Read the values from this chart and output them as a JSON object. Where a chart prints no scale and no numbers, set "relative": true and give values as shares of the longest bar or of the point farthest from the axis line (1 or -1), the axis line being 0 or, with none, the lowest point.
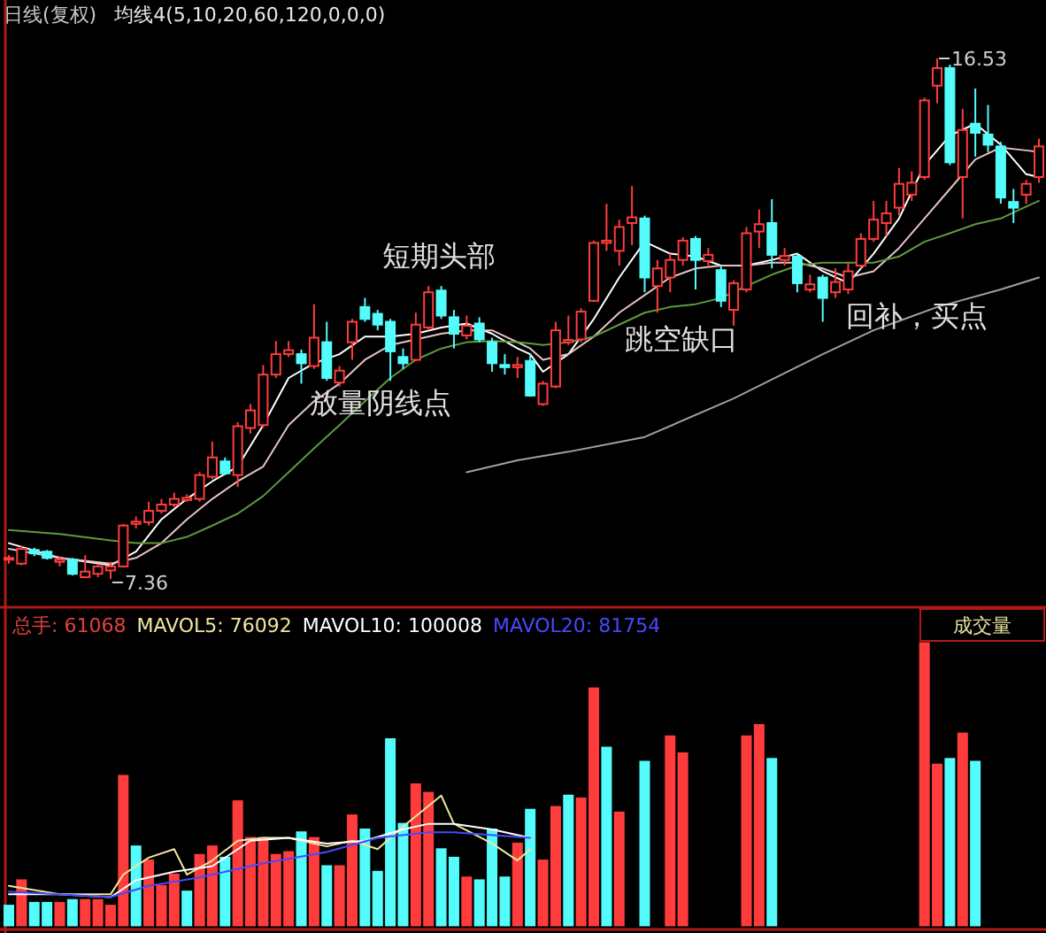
{
  "chart_data": [
    {
      "type": "candlestick",
      "title": "日线(复权)",
      "subtitle": "均线4(5,10,20,60,120,0,0,0)",
      "tick_labels": false,
      "categories": [
        null,
        null,
        null,
        null,
        null,
        null,
        null,
        null,
        null,
        null,
        null,
        null,
        null,
        null,
        null,
        null,
        null,
        null,
        null,
        null,
        null,
        null,
        null,
        null,
        null,
        null,
        null,
        null,
        null,
        null,
        null,
        null,
        null,
        null,
        null,
        null,
        null,
        null,
        null,
        null,
        null,
        null,
        null,
        null,
        null,
        null,
        null,
        null,
        null,
        null,
        null,
        null,
        null,
        null,
        null,
        null,
        null,
        null,
        null,
        null,
        null,
        null,
        null,
        null,
        null,
        null,
        null,
        null,
        null,
        null,
        null,
        null,
        null,
        null,
        null,
        null,
        null,
        null,
        null,
        null,
        null,
        null
      ],
      "ohlc": [
        [
          7.73,
          7.78,
          7.63,
          7.73
        ],
        [
          7.63,
          7.94,
          7.6,
          7.89
        ],
        [
          7.87,
          7.91,
          7.76,
          7.81
        ],
        [
          7.84,
          7.87,
          7.7,
          7.73
        ],
        [
          7.66,
          7.76,
          7.58,
          7.7
        ],
        [
          7.7,
          7.73,
          7.42,
          7.45
        ],
        [
          7.39,
          7.78,
          7.38,
          7.49
        ],
        [
          7.45,
          7.63,
          7.39,
          7.58
        ],
        [
          7.51,
          7.66,
          7.36,
          7.58
        ],
        [
          7.58,
          8.33,
          7.56,
          8.3
        ],
        [
          8.33,
          8.46,
          8.25,
          8.37
        ],
        [
          8.36,
          8.72,
          8.3,
          8.56
        ],
        [
          8.56,
          8.77,
          8.51,
          8.67
        ],
        [
          8.67,
          8.88,
          8.62,
          8.77
        ],
        [
          8.75,
          8.85,
          8.72,
          8.79
        ],
        [
          8.77,
          9.24,
          8.72,
          9.19
        ],
        [
          9.16,
          9.78,
          9.12,
          9.5
        ],
        [
          9.43,
          9.5,
          9.19,
          9.22
        ],
        [
          9.19,
          10.12,
          8.98,
          10.05
        ],
        [
          10.02,
          10.44,
          9.92,
          10.33
        ],
        [
          10.07,
          11.13,
          10.02,
          10.96
        ],
        [
          10.96,
          11.55,
          10.9,
          11.32
        ],
        [
          11.32,
          11.55,
          11.27,
          11.39
        ],
        [
          11.32,
          11.4,
          10.8,
          11.16
        ],
        [
          11.11,
          12.2,
          11.06,
          11.61
        ],
        [
          11.53,
          11.89,
          10.85,
          10.9
        ],
        [
          10.82,
          11.11,
          10.75,
          11.03
        ],
        [
          11.53,
          11.94,
          11.22,
          11.89
        ],
        [
          12.15,
          12.31,
          11.89,
          11.94
        ],
        [
          12.03,
          12.1,
          11.74,
          11.84
        ],
        [
          11.89,
          11.94,
          10.85,
          11.37
        ],
        [
          11.27,
          11.42,
          11.06,
          11.16
        ],
        [
          11.22,
          12.05,
          11.2,
          11.84
        ],
        [
          11.79,
          12.52,
          11.74,
          12.41
        ],
        [
          12.44,
          12.52,
          11.94,
          12.0
        ],
        [
          11.97,
          12.1,
          11.42,
          11.68
        ],
        [
          11.65,
          12.0,
          11.58,
          11.82
        ],
        [
          11.86,
          11.97,
          11.53,
          11.58
        ],
        [
          11.53,
          11.61,
          11.01,
          11.16
        ],
        [
          11.13,
          11.32,
          10.96,
          11.09
        ],
        [
          11.09,
          11.27,
          10.9,
          11.13
        ],
        [
          11.2,
          11.32,
          10.57,
          10.59
        ],
        [
          10.44,
          10.85,
          10.41,
          10.8
        ],
        [
          10.75,
          11.89,
          10.72,
          11.74
        ],
        [
          11.53,
          12.0,
          11.48,
          11.57
        ],
        [
          11.58,
          12.13,
          11.53,
          12.07
        ],
        [
          12.26,
          13.32,
          12.24,
          13.28
        ],
        [
          13.28,
          13.97,
          13.14,
          13.32
        ],
        [
          13.14,
          13.69,
          12.88,
          13.56
        ],
        [
          13.63,
          14.28,
          13.24,
          13.73
        ],
        [
          13.71,
          13.76,
          12.41,
          12.67
        ],
        [
          12.52,
          12.98,
          12.05,
          12.83
        ],
        [
          12.67,
          13.09,
          12.41,
          12.98
        ],
        [
          12.98,
          13.38,
          12.88,
          13.32
        ],
        [
          13.35,
          13.4,
          12.46,
          12.98
        ],
        [
          12.96,
          13.19,
          12.88,
          13.07
        ],
        [
          12.8,
          12.88,
          12.15,
          12.26
        ],
        [
          12.1,
          12.62,
          11.82,
          12.57
        ],
        [
          12.46,
          13.56,
          12.41,
          13.45
        ],
        [
          13.48,
          13.87,
          13.19,
          13.61
        ],
        [
          13.63,
          14.05,
          12.83,
          13.07
        ],
        [
          12.98,
          13.19,
          12.88,
          13.05
        ],
        [
          13.04,
          13.09,
          12.41,
          12.57
        ],
        [
          12.46,
          12.72,
          12.41,
          12.55
        ],
        [
          12.67,
          12.72,
          11.89,
          12.31
        ],
        [
          12.41,
          12.83,
          12.31,
          12.59
        ],
        [
          12.46,
          12.93,
          12.38,
          12.78
        ],
        [
          12.88,
          13.45,
          12.83,
          13.35
        ],
        [
          13.35,
          14.02,
          13.3,
          13.69
        ],
        [
          13.63,
          14.02,
          13.4,
          13.8
        ],
        [
          13.9,
          14.6,
          13.76,
          14.32
        ],
        [
          14.13,
          14.54,
          14.02,
          14.34
        ],
        [
          14.44,
          15.84,
          14.39,
          15.79
        ],
        [
          16.05,
          16.53,
          15.74,
          16.36
        ],
        [
          16.36,
          16.42,
          14.65,
          14.7
        ],
        [
          14.44,
          15.64,
          13.71,
          15.27
        ],
        [
          15.38,
          16.0,
          14.8,
          15.22
        ],
        [
          15.19,
          15.71,
          14.88,
          15.01
        ],
        [
          14.98,
          15.06,
          13.97,
          14.08
        ],
        [
          14.0,
          14.23,
          13.63,
          13.9
        ],
        [
          14.13,
          14.39,
          13.97,
          14.32
        ],
        [
          14.44,
          15.12,
          14.34,
          14.98
        ]
      ],
      "colors": [
        "#ff3c3c",
        "#ff3c3c",
        "#54fcfc",
        "#54fcfc",
        "#ff3c3c",
        "#54fcfc",
        "#ff3c3c",
        "#ff3c3c",
        "#ff3c3c",
        "#ff3c3c",
        "#ff3c3c",
        "#ff3c3c",
        "#ff3c3c",
        "#ff3c3c",
        "#ff3c3c",
        "#ff3c3c",
        "#ff3c3c",
        "#54fcfc",
        "#ff3c3c",
        "#ff3c3c",
        "#ff3c3c",
        "#ff3c3c",
        "#ff3c3c",
        "#54fcfc",
        "#ff3c3c",
        "#54fcfc",
        "#ff3c3c",
        "#ff3c3c",
        "#54fcfc",
        "#54fcfc",
        "#54fcfc",
        "#54fcfc",
        "#ff3c3c",
        "#ff3c3c",
        "#54fcfc",
        "#54fcfc",
        "#ff3c3c",
        "#54fcfc",
        "#54fcfc",
        "#54fcfc",
        "#ff3c3c",
        "#54fcfc",
        "#ff3c3c",
        "#ff3c3c",
        "#ff3c3c",
        "#ff3c3c",
        "#ff3c3c",
        "#ff3c3c",
        "#ff3c3c",
        "#ff3c3c",
        "#54fcfc",
        "#ff3c3c",
        "#ff3c3c",
        "#ff3c3c",
        "#54fcfc",
        "#ff3c3c",
        "#54fcfc",
        "#ff3c3c",
        "#ff3c3c",
        "#ff3c3c",
        "#54fcfc",
        "#ff3c3c",
        "#54fcfc",
        "#ff3c3c",
        "#54fcfc",
        "#ff3c3c",
        "#ff3c3c",
        "#ff3c3c",
        "#ff3c3c",
        "#ff3c3c",
        "#ff3c3c",
        "#ff3c3c",
        "#ff3c3c",
        "#ff3c3c",
        "#54fcfc",
        "#ff3c3c",
        "#54fcfc",
        "#54fcfc",
        "#54fcfc",
        "#54fcfc",
        "#ff3c3c",
        "#ff3c3c"
      ],
      "series": [
        {
          "type": "line",
          "color": "#ffffff",
          "values": [
            7.99,
            null,
            null,
            null,
            7.73,
            null,
            null,
            null,
            7.6,
            null,
            7.84,
            null,
            8.41,
            null,
            8.77,
            null,
            9.08,
            null,
            9.34,
            null,
            10.07,
            null,
            10.9,
            null,
            11.16,
            null,
            11.32,
            null,
            11.63,
            null,
            11.63,
            null,
            11.68,
            null,
            11.79,
            null,
            11.86,
            null,
            11.68,
            null,
            11.42,
            11.32,
            11.01,
            null,
            11.32,
            null,
            11.94,
            null,
            12.67,
            null,
            13.3,
            null,
            13.09,
            null,
            13.04,
            null,
            12.88,
            null,
            12.88,
            null,
            12.98,
            null,
            13.09,
            null,
            12.78,
            null,
            12.57,
            null,
            13.09,
            null,
            13.71,
            null,
            14.65,
            null,
            15.17,
            null,
            15.38,
            null,
            15.01,
            null,
            14.49,
            14.44
          ]
        },
        {
          "type": "line",
          "color": "#e6c3c3",
          "values": [
            7.89,
            null,
            null,
            null,
            7.73,
            null,
            null,
            null,
            7.63,
            null,
            7.73,
            null,
            7.99,
            null,
            8.41,
            null,
            8.77,
            null,
            9.08,
            null,
            9.34,
            null,
            10.07,
            null,
            10.49,
            null,
            10.8,
            null,
            11.22,
            null,
            11.48,
            null,
            11.58,
            null,
            11.68,
            null,
            11.74,
            null,
            11.74,
            null,
            11.53,
            11.42,
            11.22,
            null,
            11.32,
            null,
            11.63,
            null,
            12.05,
            null,
            12.36,
            null,
            12.67,
            null,
            12.83,
            null,
            12.88,
            null,
            12.88,
            null,
            12.93,
            null,
            12.93,
            null,
            12.83,
            null,
            12.67,
            null,
            12.78,
            null,
            13.19,
            null,
            13.71,
            null,
            14.23,
            null,
            14.75,
            null,
            14.96,
            null,
            14.91,
            14.88
          ]
        },
        {
          "type": "line",
          "color": "#5e9a3c",
          "values": [
            8.22,
            null,
            null,
            null,
            8.15,
            null,
            null,
            null,
            8.04,
            null,
            7.99,
            null,
            7.99,
            null,
            8.1,
            null,
            8.3,
            null,
            8.51,
            null,
            8.82,
            null,
            9.24,
            null,
            9.66,
            null,
            10.07,
            null,
            10.49,
            null,
            10.9,
            null,
            11.22,
            null,
            11.42,
            null,
            11.53,
            null,
            11.55,
            null,
            11.53,
            11.51,
            11.48,
            null,
            11.53,
            null,
            11.63,
            null,
            11.84,
            null,
            12.05,
            null,
            12.15,
            null,
            12.2,
            null,
            12.31,
            null,
            12.52,
            null,
            12.72,
            null,
            12.88,
            null,
            12.93,
            null,
            12.93,
            null,
            12.93,
            null,
            13.04,
            null,
            13.3,
            null,
            13.45,
            null,
            13.61,
            null,
            13.71,
            null,
            13.92,
            14.02
          ]
        },
        {
          "type": "line",
          "color": "#a0a0a0",
          "values": [
            null,
            null,
            null,
            null,
            null,
            null,
            null,
            null,
            null,
            null,
            null,
            null,
            null,
            null,
            null,
            null,
            null,
            null,
            null,
            null,
            null,
            null,
            null,
            null,
            null,
            null,
            null,
            null,
            null,
            null,
            null,
            null,
            null,
            null,
            null,
            null,
            9.24,
            null,
            null,
            null,
            9.45,
            null,
            null,
            null,
            9.6,
            null,
            null,
            null,
            null,
            null,
            9.86,
            null,
            null,
            null,
            null,
            null,
            null,
            10.54,
            null,
            null,
            null,
            null,
            null,
            null,
            11.32,
            null,
            null,
            null,
            11.74,
            null,
            null,
            null,
            null,
            12.15,
            null,
            null,
            null,
            null,
            12.46,
            null,
            null,
            12.67
          ]
        }
      ],
      "annotations": [
        "短期头部",
        "放量阴线点",
        "跳空缺口",
        "回补，买点",
        "16.53",
        "7.36"
      ]
    },
    {
      "type": "bar",
      "relative": true,
      "title": "成交量",
      "tick_labels": false,
      "categories": [
        null,
        null,
        null,
        null,
        null,
        null,
        null,
        null,
        null,
        null,
        null,
        null,
        null,
        null,
        null,
        null,
        null,
        null,
        null,
        null,
        null,
        null,
        null,
        null,
        null,
        null,
        null,
        null,
        null,
        null,
        null,
        null,
        null,
        null,
        null,
        null,
        null,
        null,
        null,
        null,
        null,
        null,
        null,
        null,
        null,
        null,
        null,
        null,
        null,
        null,
        null,
        null,
        null,
        null,
        null,
        null,
        null,
        null,
        null,
        null,
        null,
        null,
        null,
        null,
        null,
        null,
        null,
        null,
        null,
        null,
        null,
        null,
        null,
        null,
        null,
        null,
        null,
        null,
        null,
        null,
        null,
        null
      ],
      "values": [
        0.07,
        0.16,
        0.08,
        0.08,
        0.08,
        0.09,
        0.09,
        0.09,
        0.07,
        0.53,
        0.28,
        0.23,
        0.14,
        0.18,
        0.12,
        0.25,
        0.28,
        0.24,
        0.44,
        0.31,
        0.31,
        0.25,
        0.26,
        0.33,
        0.31,
        0.21,
        0.21,
        0.39,
        0.34,
        0.19,
        0.66,
        0.36,
        0.5,
        0.47,
        0.27,
        0.24,
        0.17,
        0.16,
        0.34,
        0.17,
        0.29,
        0.41,
        0.23,
        0.42,
        0.46,
        0.45,
        0.84,
        0.63,
        0.4,
        null,
        0.58,
        null,
        0.67,
        0.61,
        null,
        null,
        null,
        null,
        0.67,
        0.71,
        0.59,
        null,
        null,
        null,
        null,
        null,
        null,
        null,
        null,
        null,
        null,
        null,
        1,
        0.57,
        0.59,
        0.68,
        0.58,
        null,
        null,
        null,
        null,
        null
      ],
      "colors": [
        "#54fcfc",
        "#ff3c3c",
        "#54fcfc",
        "#54fcfc",
        "#ff3c3c",
        "#54fcfc",
        "#ff3c3c",
        "#ff3c3c",
        "#ff3c3c",
        "#ff3c3c",
        "#54fcfc",
        "#ff3c3c",
        "#ff3c3c",
        "#ff3c3c",
        "#54fcfc",
        "#ff3c3c",
        "#ff3c3c",
        "#54fcfc",
        "#ff3c3c",
        "#ff3c3c",
        "#ff3c3c",
        "#ff3c3c",
        "#ff3c3c",
        "#54fcfc",
        "#ff3c3c",
        "#54fcfc",
        "#ff3c3c",
        "#ff3c3c",
        "#54fcfc",
        "#54fcfc",
        "#54fcfc",
        "#54fcfc",
        "#ff3c3c",
        "#ff3c3c",
        "#54fcfc",
        "#54fcfc",
        "#ff3c3c",
        "#54fcfc",
        "#54fcfc",
        "#54fcfc",
        "#ff3c3c",
        "#54fcfc",
        "#ff3c3c",
        "#ff3c3c",
        "#54fcfc",
        "#ff3c3c",
        "#ff3c3c",
        "#54fcfc",
        "#ff3c3c",
        null,
        "#54fcfc",
        null,
        "#ff3c3c",
        "#ff3c3c",
        null,
        null,
        null,
        null,
        "#ff3c3c",
        "#ff3c3c",
        "#54fcfc",
        null,
        null,
        null,
        null,
        null,
        null,
        null,
        null,
        null,
        null,
        null,
        "#ff3c3c",
        "#ff3c3c",
        "#54fcfc",
        "#ff3c3c",
        "#54fcfc",
        null,
        null,
        null,
        null,
        null
      ],
      "series": [
        {
          "type": "line",
          "name": "MAVOL5: 76092",
          "color": "#f0e6a0",
          "values": [
            0.14,
            null,
            null,
            null,
            0.11,
            null,
            null,
            null,
            0.11,
            0.18,
            null,
            0.24,
            null,
            0.27,
            0.18,
            null,
            0.23,
            null,
            0.3,
            null,
            0.31,
            null,
            0.31,
            null,
            null,
            0.28,
            null,
            0.3,
            null,
            0.27,
            null,
            0.35,
            null,
            null,
            0.46,
            0.36,
            null,
            null,
            0.29,
            null,
            0.23,
            0.27,
            null,
            null,
            null,
            null,
            null,
            null,
            null,
            null,
            null,
            null,
            null,
            null,
            null,
            null,
            null,
            null,
            null,
            null,
            null,
            null,
            null,
            null,
            null,
            null,
            null,
            null,
            null,
            null,
            null,
            null,
            null,
            null,
            null,
            null,
            null,
            null,
            null,
            null,
            null,
            null
          ]
        },
        {
          "type": "line",
          "name": "MAVOL10: 100008",
          "color": "#ffffff",
          "values": [
            0.11,
            null,
            null,
            null,
            0.11,
            null,
            null,
            null,
            0.1,
            null,
            0.16,
            null,
            null,
            0.19,
            null,
            null,
            0.21,
            null,
            null,
            0.3,
            null,
            null,
            0.31,
            null,
            null,
            0.29,
            null,
            null,
            0.3,
            null,
            null,
            0.34,
            null,
            0.36,
            null,
            0.36,
            null,
            null,
            0.34,
            null,
            null,
            0.31,
            null,
            null,
            null,
            null,
            null,
            null,
            null,
            null,
            null,
            null,
            null,
            null,
            null,
            null,
            null,
            null,
            null,
            null,
            null,
            null,
            null,
            null,
            null,
            null,
            null,
            null,
            null,
            null,
            null,
            null,
            null,
            null,
            null,
            null,
            null,
            null,
            null,
            null,
            null,
            null
          ]
        },
        {
          "type": "line",
          "name": "MAVOL20: 81754",
          "color": "#4848ff",
          "values": [
            0.12,
            null,
            null,
            null,
            null,
            null,
            null,
            null,
            0.1,
            null,
            null,
            0.14,
            null,
            null,
            null,
            0.17,
            null,
            null,
            null,
            null,
            0.22,
            null,
            null,
            null,
            null,
            0.26,
            null,
            null,
            null,
            0.31,
            null,
            null,
            null,
            0.33,
            null,
            0.33,
            null,
            null,
            null,
            null,
            null,
            0.31,
            null,
            null,
            null,
            null,
            null,
            null,
            null,
            null,
            null,
            null,
            null,
            null,
            null,
            null,
            null,
            null,
            null,
            null,
            null,
            null,
            null,
            null,
            null,
            null,
            null,
            null,
            null,
            null,
            null,
            null,
            null,
            null,
            null,
            null,
            null,
            null,
            null,
            null,
            null,
            null
          ]
        }
      ],
      "annotations": [
        "总手: 61068"
      ]
    }
  ]
}
